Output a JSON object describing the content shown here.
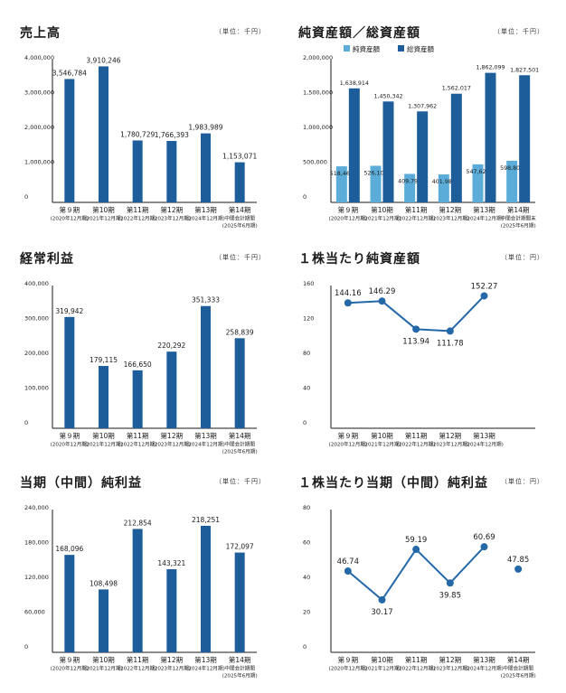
{
  "colors": {
    "dark": "#1c5d9a",
    "light": "#5bacd8",
    "line": "#2468a8",
    "text": "#1a1a1a",
    "axis": "#1a1a1a"
  },
  "panels": [
    {
      "title": "売上高",
      "unit": "（単位：千円）",
      "chart_data": {
        "type": "bar",
        "categories": [
          [
            "第９期",
            "(2020年12月期)"
          ],
          [
            "第10期",
            "(2021年12月期)"
          ],
          [
            "第11期",
            "(2022年12月期)"
          ],
          [
            "第12期",
            "(2023年12月期)"
          ],
          [
            "第13期",
            "(2024年12月期)"
          ],
          [
            "第14期",
            "中間会計期間",
            "(2025年6月期)"
          ]
        ],
        "ylim": [
          0,
          4000000
        ],
        "yticks": [
          "0",
          "1,000,000",
          "2,000,000",
          "3,000,000",
          "4,000,000"
        ],
        "series": [
          {
            "values": [
              3546784,
              3910246,
              1780729,
              1766393,
              1983989,
              1153071
            ],
            "labels": [
              "3,546,784",
              "3,910,246",
              "1,780,729",
              "1,766,393",
              "1,983,989",
              "1,153,071"
            ]
          }
        ]
      }
    },
    {
      "title": "純資産額／総資産額",
      "unit": "（単位：千円）",
      "chart_data": {
        "type": "bar",
        "legend": [
          "純資産額",
          "総資産額"
        ],
        "categories": [
          [
            "第９期",
            "(2020年12月期)"
          ],
          [
            "第10期",
            "(2021年12月期)"
          ],
          [
            "第11期",
            "(2022年12月期)"
          ],
          [
            "第12期",
            "(2023年12月期)"
          ],
          [
            "第13期",
            "(2024年12月期)"
          ],
          [
            "第14期",
            "中間会計期間末",
            "(2025年6月期)"
          ]
        ],
        "ylim": [
          0,
          2000000
        ],
        "yticks": [
          "0",
          "500,000",
          "1,000,000",
          "1,500,000",
          "2,000,000"
        ],
        "series": [
          {
            "name": "純資産額",
            "values": [
              518468,
              526106,
              409791,
              401988,
              547626,
              598802
            ],
            "labels": [
              "518,468",
              "526,106",
              "409,791",
              "401,988",
              "547,626",
              "598,802"
            ]
          },
          {
            "name": "総資産額",
            "values": [
              1638914,
              1450342,
              1307962,
              1562017,
              1862099,
              1827501
            ],
            "labels": [
              "1,638,914",
              "1,450,342",
              "1,307,962",
              "1,562,017",
              "1,862,099",
              "1,827,501"
            ]
          }
        ]
      }
    },
    {
      "title": "経常利益",
      "unit": "（単位：千円）",
      "chart_data": {
        "type": "bar",
        "categories": [
          [
            "第９期",
            "(2020年12月期)"
          ],
          [
            "第10期",
            "(2021年12月期)"
          ],
          [
            "第11期",
            "(2022年12月期)"
          ],
          [
            "第12期",
            "(2023年12月期)"
          ],
          [
            "第13期",
            "(2024年12月期)"
          ],
          [
            "第14期",
            "中間会計期間",
            "(2025年6月期)"
          ]
        ],
        "ylim": [
          0,
          400000
        ],
        "yticks": [
          "0",
          "100,000",
          "200,000",
          "300,000",
          "400,000"
        ],
        "series": [
          {
            "values": [
              319942,
              179115,
              166650,
              220292,
              351333,
              258839
            ],
            "labels": [
              "319,942",
              "179,115",
              "166,650",
              "220,292",
              "351,333",
              "258,839"
            ]
          }
        ]
      }
    },
    {
      "title": "１株当たり純資産額",
      "unit": "（単位：円）",
      "chart_data": {
        "type": "line",
        "categories": [
          [
            "第９期",
            "(2020年12月期)"
          ],
          [
            "第10期",
            "(2021年12月期)"
          ],
          [
            "第11期",
            "(2022年12月期)"
          ],
          [
            "第12期",
            "(2023年12月期)"
          ],
          [
            "第13期",
            "(2024年12月期)"
          ]
        ],
        "ylim": [
          0,
          160
        ],
        "yticks": [
          "0",
          "40",
          "80",
          "120",
          "160"
        ],
        "series": [
          {
            "values": [
              144.16,
              146.29,
              113.94,
              111.78,
              152.27
            ],
            "labels": [
              "144.16",
              "146.29",
              "113.94",
              "111.78",
              "152.27"
            ],
            "label_pos": [
              "above",
              "above",
              "below",
              "below",
              "above"
            ],
            "connect": [
              true,
              true,
              true,
              true,
              true
            ]
          }
        ]
      }
    },
    {
      "title": "当期（中間）純利益",
      "unit": "（単位：千円）",
      "chart_data": {
        "type": "bar",
        "categories": [
          [
            "第９期",
            "(2020年12月期)"
          ],
          [
            "第10期",
            "(2021年12月期)"
          ],
          [
            "第11期",
            "(2022年12月期)"
          ],
          [
            "第12期",
            "(2023年12月期)"
          ],
          [
            "第13期",
            "(2024年12月期)"
          ],
          [
            "第14期",
            "中間会計期間",
            "(2025年6月期)"
          ]
        ],
        "ylim": [
          0,
          240000
        ],
        "yticks": [
          "0",
          "60,000",
          "120,000",
          "180,000",
          "240,000"
        ],
        "series": [
          {
            "values": [
              168096,
              108498,
              212854,
              143321,
              218251,
              172097
            ],
            "labels": [
              "168,096",
              "108,498",
              "212,854",
              "143,321",
              "218,251",
              "172,097"
            ]
          }
        ]
      }
    },
    {
      "title": "１株当たり当期（中間）純利益",
      "unit": "（単位：円）",
      "chart_data": {
        "type": "line",
        "categories": [
          [
            "第９期",
            "(2020年12月期)"
          ],
          [
            "第10期",
            "(2021年12月期)"
          ],
          [
            "第11期",
            "(2022年12月期)"
          ],
          [
            "第12期",
            "(2023年12月期)"
          ],
          [
            "第13期",
            "(2024年12月期)"
          ],
          [
            "第14期",
            "中間会計期間",
            "(2025年6月期)"
          ]
        ],
        "ylim": [
          0,
          80
        ],
        "yticks": [
          "0",
          "20",
          "40",
          "60",
          "80"
        ],
        "series": [
          {
            "values": [
              46.74,
              30.17,
              59.19,
              39.85,
              60.69,
              47.85
            ],
            "labels": [
              "46.74",
              "30.17",
              "59.19",
              "39.85",
              "60.69",
              "47.85"
            ],
            "label_pos": [
              "above",
              "below",
              "above",
              "below",
              "above",
              "above"
            ],
            "connect": [
              true,
              true,
              true,
              true,
              false,
              false
            ]
          }
        ]
      }
    }
  ]
}
